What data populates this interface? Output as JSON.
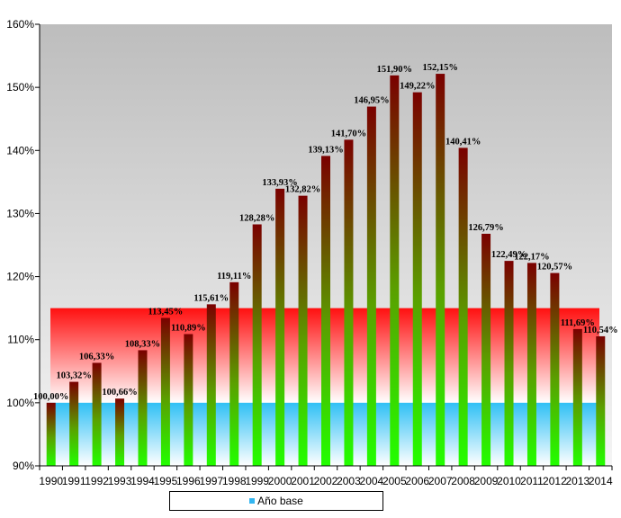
{
  "chart_data": {
    "type": "bar",
    "title": "",
    "xlabel": "",
    "ylabel": "",
    "ylim": [
      90,
      160
    ],
    "ytick_labels": [
      "90%",
      "100%",
      "110%",
      "120%",
      "130%",
      "140%",
      "150%",
      "160%"
    ],
    "yticks": [
      90,
      100,
      110,
      120,
      130,
      140,
      150,
      160
    ],
    "categories": [
      "1990",
      "1991",
      "1992",
      "1993",
      "1994",
      "1995",
      "1996",
      "1997",
      "1998",
      "1999",
      "2000",
      "2001",
      "2002",
      "2003",
      "2004",
      "2005",
      "2006",
      "2007",
      "2008",
      "2009",
      "2010",
      "2011",
      "2012",
      "2013",
      "2014"
    ],
    "values": [
      100.0,
      103.32,
      106.33,
      100.66,
      108.33,
      113.45,
      110.89,
      115.61,
      119.11,
      128.28,
      133.93,
      132.82,
      139.13,
      141.7,
      146.95,
      151.9,
      149.22,
      152.15,
      140.41,
      126.79,
      122.49,
      122.17,
      120.57,
      111.69,
      110.54
    ],
    "data_labels": [
      "100,00%",
      "103,32%",
      "106,33%",
      "100,66%",
      "108,33%",
      "113,45%",
      "110,89%",
      "115,61%",
      "119,11%",
      "128,28%",
      "133,93%",
      "132,82%",
      "139,13%",
      "141,70%",
      "146,95%",
      "151,90%",
      "149,22%",
      "152,15%",
      "140,41%",
      "126,79%",
      "122,49%",
      "122,17%",
      "120,57%",
      "111,69%",
      "110,54%"
    ],
    "base_band": [
      90,
      100
    ],
    "target_band": [
      100,
      115
    ],
    "legend": [
      {
        "label": "Año base",
        "color": "#33b5f0"
      }
    ],
    "legend_position": "bottom",
    "grid": false
  },
  "colors": {
    "bar_top": "#7a0a00",
    "bar_bottom": "#22ff00",
    "plot_top": "#bdbdbd",
    "plot_bottom": "#f2f2f2",
    "band_red": "#ff1a1a",
    "band_blue": "#33c8f5"
  }
}
